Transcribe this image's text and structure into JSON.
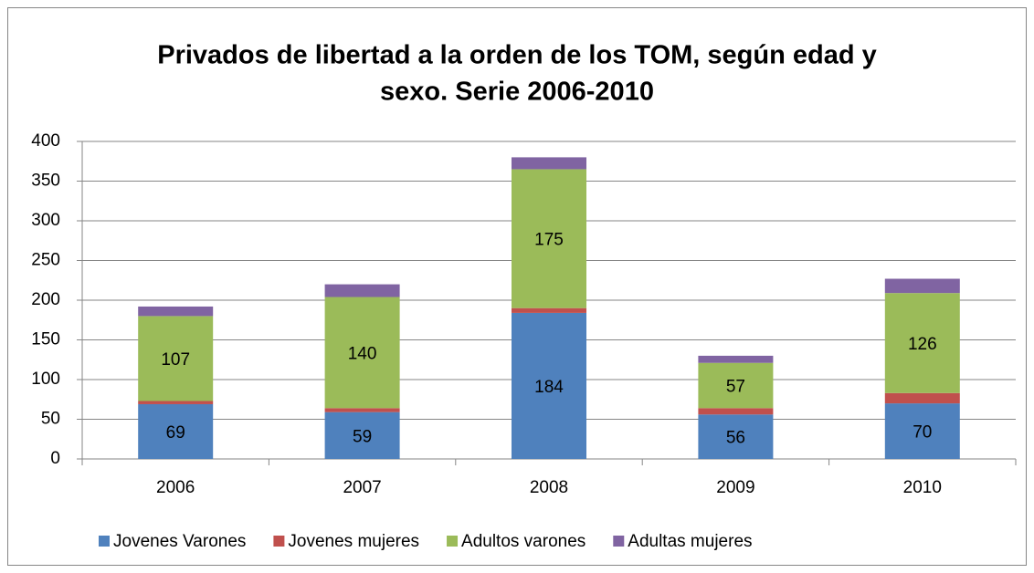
{
  "chart_data": {
    "type": "stacked_bar",
    "title": [
      "Privados de libertad a la orden de los TOM, según edad y",
      "sexo. Serie 2006-2010"
    ],
    "categories": [
      "2006",
      "2007",
      "2008",
      "2009",
      "2010"
    ],
    "series": [
      {
        "name": "Jovenes Varones",
        "color": "#4f81bd",
        "values": [
          69,
          59,
          184,
          56,
          70
        ],
        "show_labels": true
      },
      {
        "name": "Jovenes mujeres",
        "color": "#c0504d",
        "values": [
          4,
          5,
          6,
          8,
          13
        ],
        "show_labels": false
      },
      {
        "name": "Adultos varones",
        "color": "#9bbb59",
        "values": [
          107,
          140,
          175,
          57,
          126
        ],
        "show_labels": true
      },
      {
        "name": "Adultas mujeres",
        "color": "#8064a2",
        "values": [
          12,
          16,
          15,
          9,
          18
        ],
        "show_labels": false
      }
    ],
    "ylim": [
      0,
      400
    ],
    "yticks": [
      0,
      50,
      100,
      150,
      200,
      250,
      300,
      350,
      400
    ],
    "grid": true,
    "legend": "bottom"
  }
}
